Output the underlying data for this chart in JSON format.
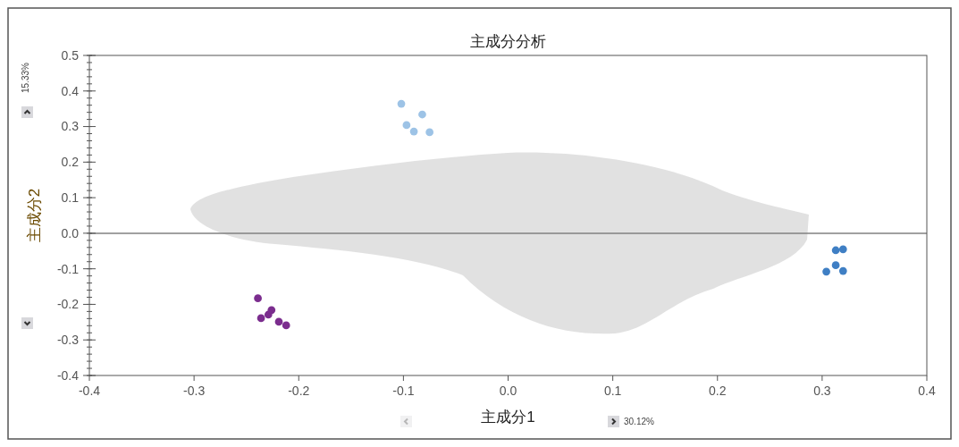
{
  "chart_data": {
    "type": "scatter",
    "title": "主成分分析",
    "xlabel": "主成分1",
    "ylabel": "主成分2",
    "xlim": [
      -0.4,
      0.4
    ],
    "xticks": [
      -0.4,
      -0.3,
      -0.2,
      -0.1,
      {
        "value": 0,
        "label": "0.0"
      },
      0.1,
      0.2,
      0.3,
      0.4
    ],
    "ylim": [
      -0.4,
      0.5
    ],
    "yticks": [
      -0.4,
      -0.3,
      -0.2,
      -0.1,
      {
        "value": 0,
        "label": "0.0"
      },
      0.1,
      0.2,
      0.3,
      0.4,
      0.5
    ],
    "grid": false,
    "marker": "circle",
    "ref_lines": [
      {
        "axis": "y",
        "value": 0,
        "color": "#808080"
      }
    ],
    "annotations": [
      "15.33%",
      "30.12%"
    ],
    "series": [
      {
        "color": "#9dc3e6",
        "x": [
          -0.102,
          -0.097,
          -0.082,
          -0.09,
          -0.075
        ],
        "values": [
          0.364,
          0.304,
          0.334,
          0.286,
          0.284
        ]
      },
      {
        "color": "#7b2d8e",
        "x": [
          -0.239,
          -0.236,
          -0.229,
          -0.226,
          -0.219,
          -0.212
        ],
        "values": [
          -0.183,
          -0.239,
          -0.229,
          -0.216,
          -0.249,
          -0.259
        ]
      },
      {
        "color": "#3f7fc4",
        "x": [
          0.313,
          0.32,
          0.313,
          0.304,
          0.32
        ],
        "values": [
          -0.048,
          -0.045,
          -0.09,
          -0.108,
          -0.106
        ]
      }
    ]
  }
}
